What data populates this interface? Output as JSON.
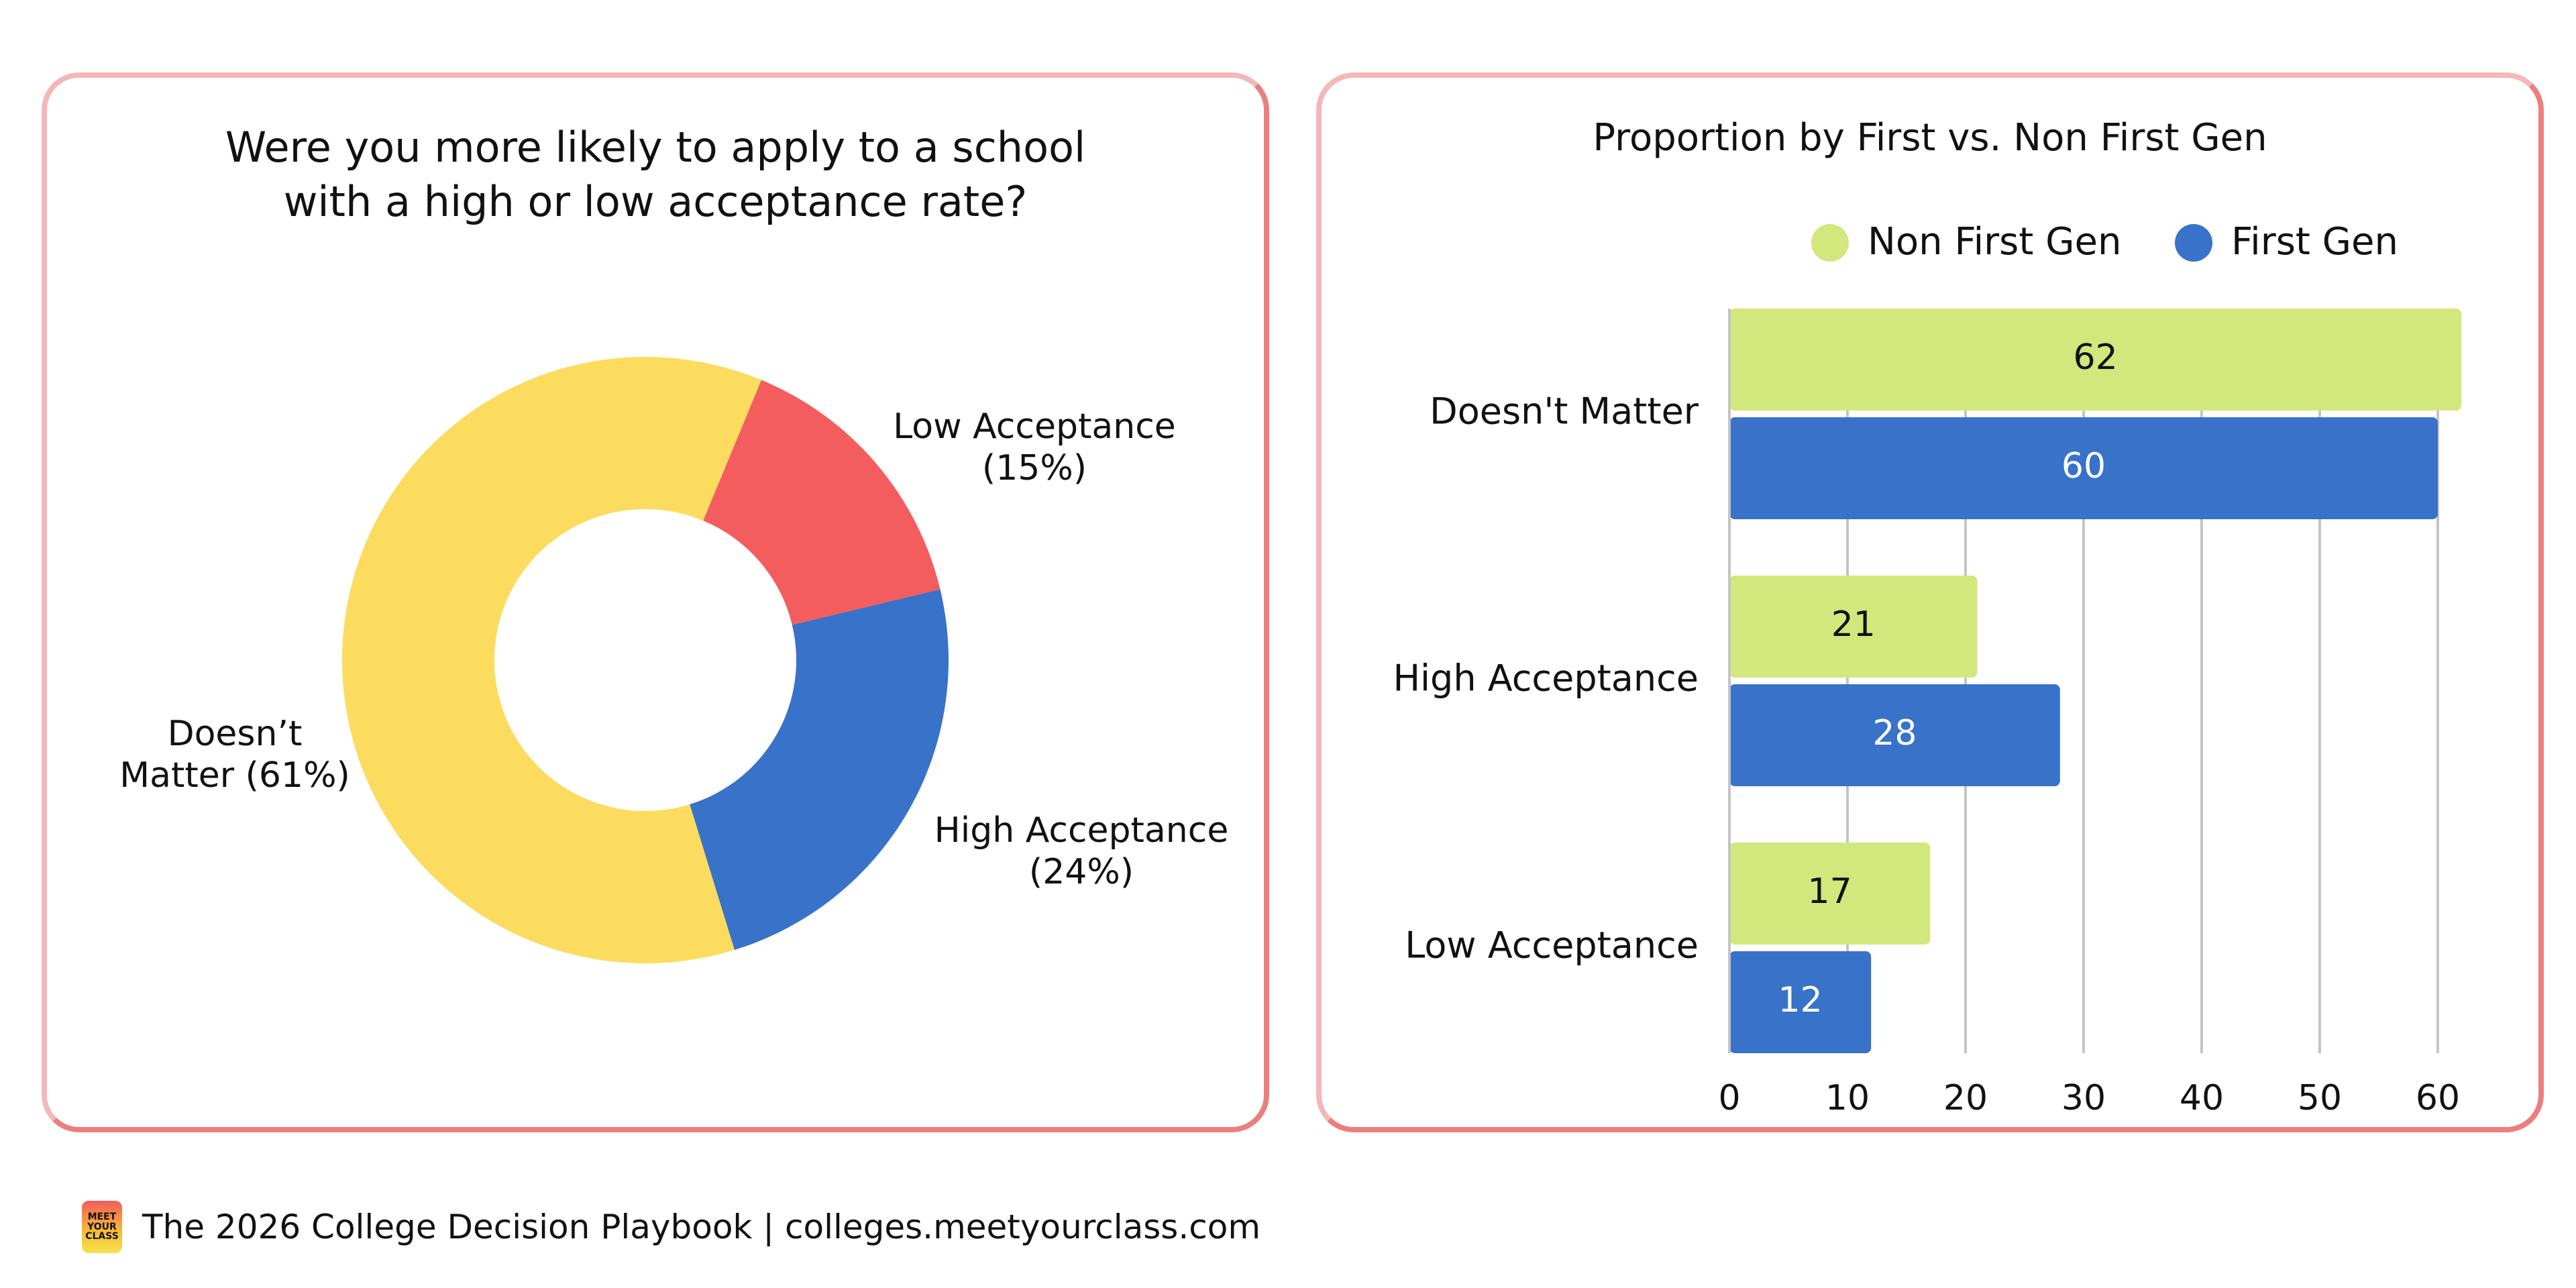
{
  "chart_data": [
    {
      "type": "pie",
      "title": "Were you more likely to apply to a school\nwith a high or low acceptance rate?",
      "categories": [
        "Low Acceptance",
        "High Acceptance",
        "Doesn’t Matter"
      ],
      "values": [
        15,
        24,
        61
      ],
      "labels": [
        "Low Acceptance\n(15%)",
        "High Acceptance\n(24%)",
        "Doesn’t\nMatter (61%)"
      ],
      "colors": [
        "#f45d5d",
        "#3872c9",
        "#fcdc5f"
      ]
    },
    {
      "type": "bar",
      "orientation": "horizontal",
      "title": "Proportion by First vs. Non First Gen",
      "categories": [
        "Doesn't Matter",
        "High Acceptance",
        "Low Acceptance"
      ],
      "series": [
        {
          "name": "Non First Gen",
          "values": [
            62,
            21,
            17
          ],
          "color": "#d2e77c"
        },
        {
          "name": "First Gen",
          "values": [
            60,
            28,
            12
          ],
          "color": "#3872c9"
        }
      ],
      "xlim": [
        0,
        60
      ],
      "ticks": [
        "0",
        "10",
        "20",
        "30",
        "40",
        "50",
        "60"
      ],
      "grid": true,
      "legend": "top"
    }
  ],
  "footer": {
    "logo_text": [
      "MEET",
      "YOUR",
      "CLASS"
    ],
    "text": "The 2026 College Decision Playbook | colleges.meetyourclass.com"
  }
}
